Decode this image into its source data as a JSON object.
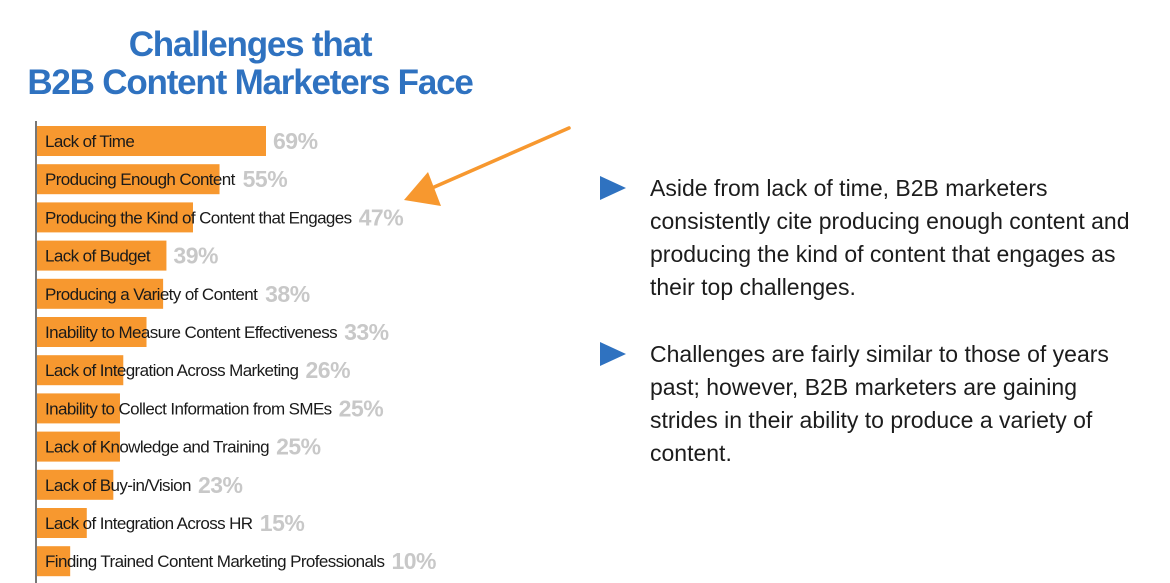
{
  "title": {
    "line1": "Challenges that",
    "line2": "B2B Content Marketers Face"
  },
  "colors": {
    "title": "#2f72c0",
    "bar": "#f7982f",
    "value_label": "#c8c8c8",
    "bullet_icon": "#2f72c0",
    "arrow": "#f7982f"
  },
  "chart_data": {
    "type": "bar",
    "orientation": "horizontal",
    "title": "Challenges that B2B Content Marketers Face",
    "xlabel": "",
    "ylabel": "",
    "xlim": [
      0,
      100
    ],
    "grid": false,
    "legend": "none",
    "categories": [
      "Lack of Time",
      "Producing Enough Content",
      "Producing the Kind of Content that Engages",
      "Lack of Budget",
      "Producing a Variety of Content",
      "Inability to Measure Content Effectiveness",
      "Lack of Integration Across Marketing",
      "Inability to Collect Information from SMEs",
      "Lack of Knowledge and Training",
      "Lack of Buy-in/Vision",
      "Lack of Integration Across HR",
      "Finding Trained Content Marketing Professionals"
    ],
    "values": [
      69,
      55,
      47,
      39,
      38,
      33,
      26,
      25,
      25,
      23,
      15,
      10
    ],
    "value_labels": [
      "69%",
      "55%",
      "47%",
      "39%",
      "38%",
      "33%",
      "26%",
      "25%",
      "25%",
      "23%",
      "15%",
      "10%"
    ],
    "annotations": [
      {
        "type": "arrow",
        "points_to": "Producing the Kind of Content that Engages"
      }
    ]
  },
  "bullets": [
    {
      "icon": "play-triangle-icon",
      "text": "Aside from lack of time, B2B marketers consistently cite producing enough content and producing the kind of content that engages as their top challenges."
    },
    {
      "icon": "play-triangle-icon",
      "text": "Challenges are fairly similar to those of years past; however, B2B marketers are gaining strides in their ability to produce a variety of content."
    }
  ]
}
